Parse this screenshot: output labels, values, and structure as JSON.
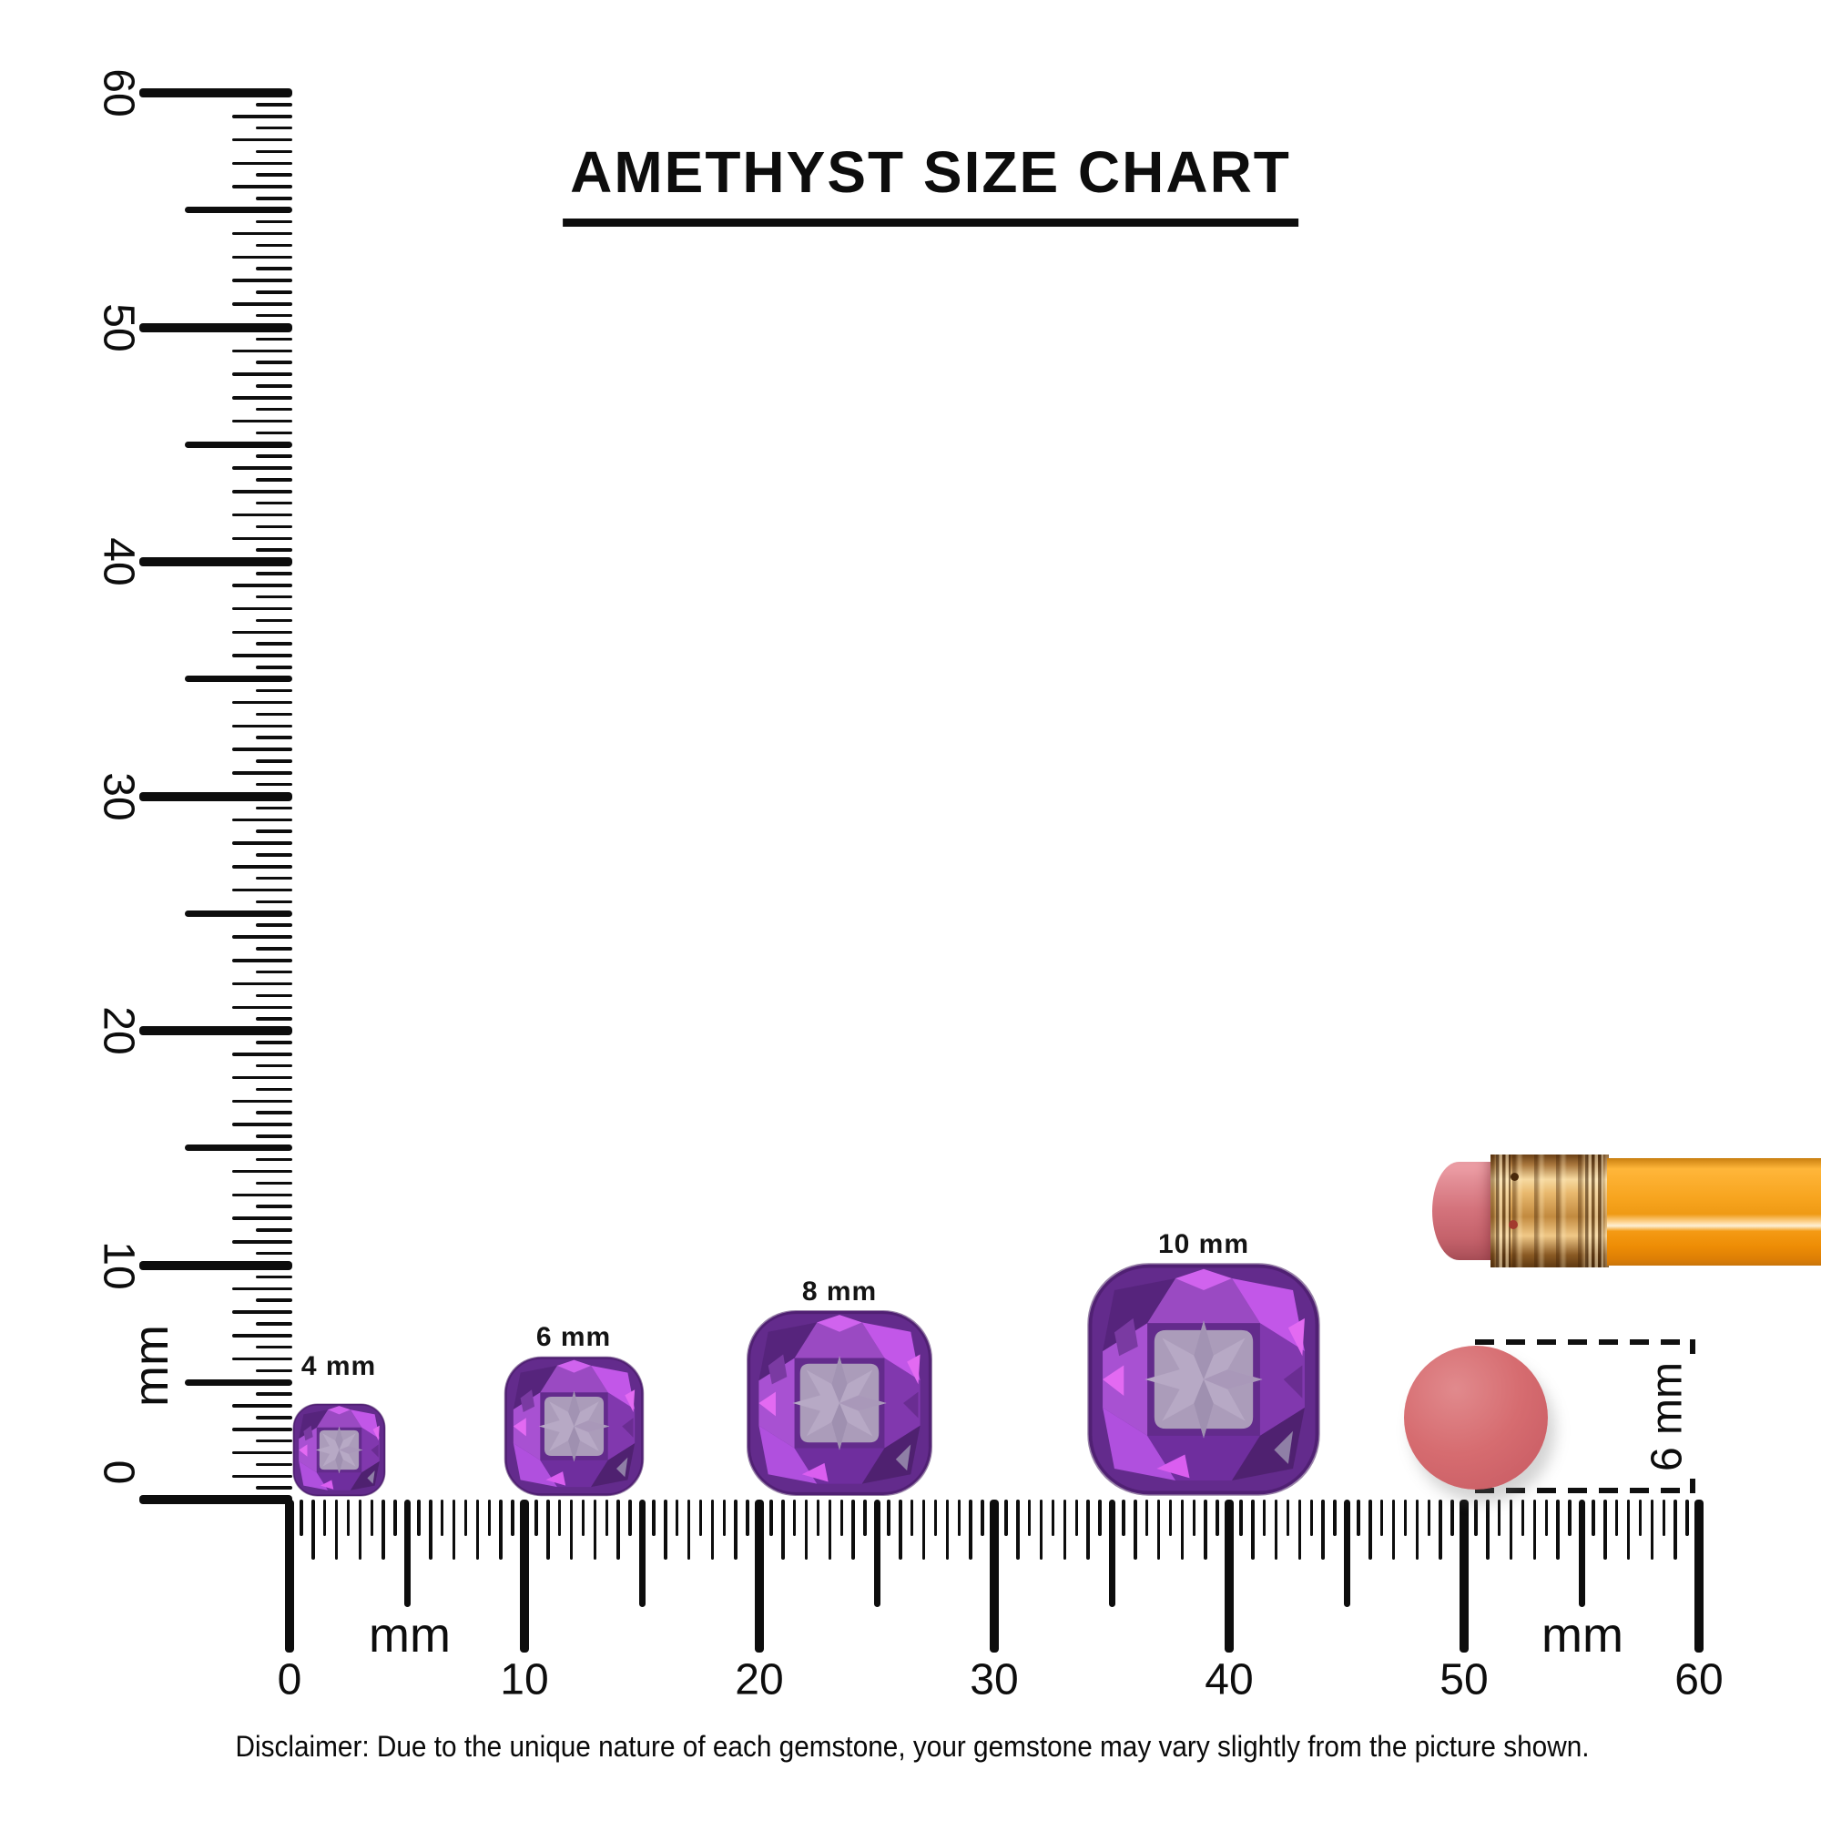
{
  "title": "AMETHYST SIZE CHART",
  "rulers": {
    "vertical": {
      "unit": "mm",
      "numbers": [
        "0",
        "10",
        "20",
        "30",
        "40",
        "50",
        "60"
      ],
      "range_mm": [
        0,
        60
      ]
    },
    "horizontal": {
      "unit_left": "mm",
      "unit_right": "mm",
      "numbers": [
        "0",
        "10",
        "20",
        "30",
        "40",
        "50",
        "60"
      ],
      "range_mm": [
        0,
        60
      ]
    }
  },
  "gems": [
    {
      "label": "4 mm",
      "size_mm": 4
    },
    {
      "label": "6 mm",
      "size_mm": 6
    },
    {
      "label": "8 mm",
      "size_mm": 8
    },
    {
      "label": "10 mm",
      "size_mm": 10
    }
  ],
  "eraser_measure": {
    "label": "6 mm",
    "diameter_mm": 6
  },
  "disclaimer": "Disclaimer: Due to the unique nature of each gemstone, your gemstone may vary slightly from the picture shown.",
  "colors": {
    "ink": "#0d0d0d",
    "amethyst_deep": "#56247c",
    "amethyst_mid": "#9a4ac2",
    "amethyst_bright": "#c257e8",
    "amethyst_magenta": "#e36af2",
    "amethyst_table": "#ab9cba",
    "eraser_disc_pink": "#d66c70",
    "pencil_eraser_pink": "#d4737c",
    "pencil_ferrule_gold": "#c28a3f",
    "pencil_body_orange": "#f7a41e"
  }
}
